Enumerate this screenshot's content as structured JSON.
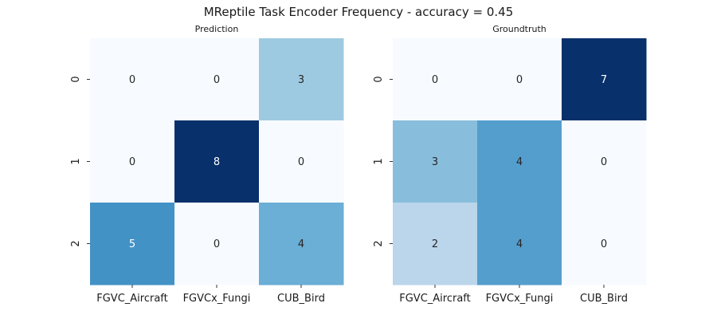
{
  "figure": {
    "suptitle": "MReptile Task Encoder Frequency - accuracy = 0.45"
  },
  "chart_data": [
    {
      "type": "heatmap",
      "title": "Prediction",
      "x_categories": [
        "FGVC_Aircraft",
        "FGVCx_Fungi",
        "CUB_Bird"
      ],
      "y_categories": [
        "0",
        "1",
        "2"
      ],
      "values": [
        [
          0,
          0,
          3
        ],
        [
          0,
          8,
          0
        ],
        [
          5,
          0,
          4
        ]
      ],
      "colormap": "Blues",
      "vmin": 0,
      "vmax": 8,
      "annotations": true,
      "colorbar": false
    },
    {
      "type": "heatmap",
      "title": "Groundtruth",
      "x_categories": [
        "FGVC_Aircraft",
        "FGVCx_Fungi",
        "CUB_Bird"
      ],
      "y_categories": [
        "0",
        "1",
        "2"
      ],
      "values": [
        [
          0,
          0,
          7
        ],
        [
          3,
          4,
          0
        ],
        [
          2,
          4,
          0
        ]
      ],
      "colormap": "Blues",
      "vmin": 0,
      "vmax": 7,
      "annotations": true,
      "colorbar": false
    }
  ]
}
